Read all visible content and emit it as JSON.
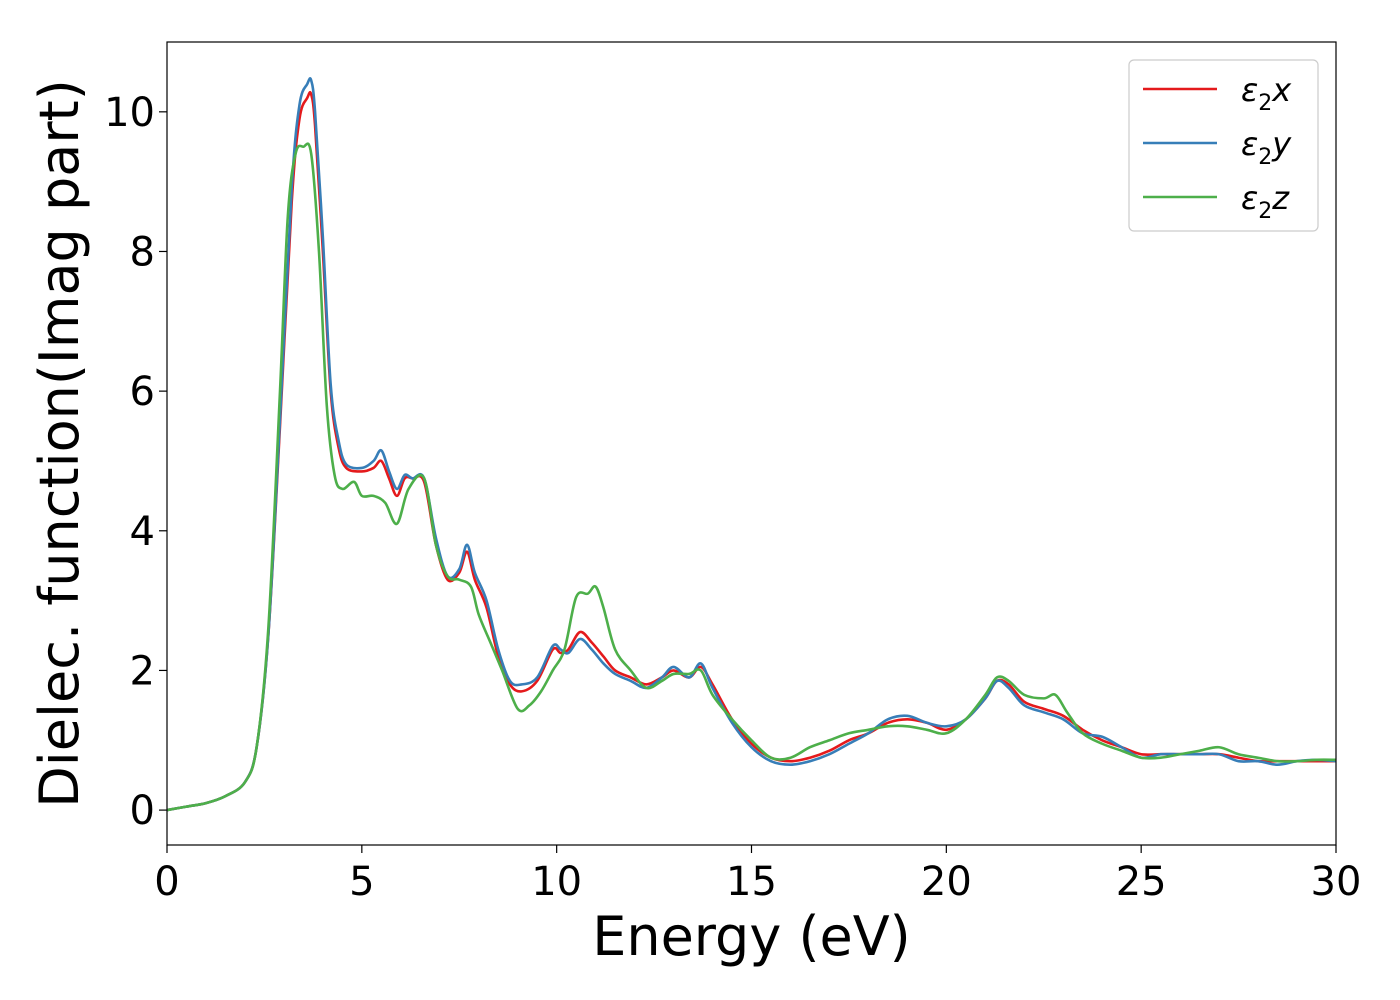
{
  "chart_data": {
    "type": "line",
    "xlabel": "Energy (eV)",
    "ylabel": "Dielec. function(Imag part)",
    "xlim": [
      0,
      30
    ],
    "ylim": [
      -0.5,
      11
    ],
    "xticks": [
      0,
      5,
      10,
      15,
      20,
      25,
      30
    ],
    "yticks": [
      0,
      2,
      4,
      6,
      8,
      10
    ],
    "grid": false,
    "legend_position": "top-right",
    "series": [
      {
        "name": "ε₂x",
        "legend_base": "ε",
        "legend_sub": "2",
        "legend_var": "x",
        "color": "#e41a1c",
        "x": [
          0,
          0.5,
          1.0,
          1.5,
          2.0,
          2.3,
          2.6,
          2.9,
          3.2,
          3.4,
          3.6,
          3.7,
          3.8,
          4.0,
          4.2,
          4.4,
          4.6,
          5.0,
          5.3,
          5.5,
          5.7,
          5.9,
          6.1,
          6.3,
          6.6,
          6.9,
          7.2,
          7.5,
          7.7,
          7.9,
          8.2,
          8.5,
          8.8,
          9.1,
          9.5,
          9.9,
          10.1,
          10.3,
          10.6,
          10.9,
          11.2,
          11.5,
          11.9,
          12.3,
          12.7,
          13.0,
          13.4,
          13.7,
          14.0,
          14.5,
          15.0,
          15.5,
          16.0,
          16.5,
          17.0,
          17.5,
          18.0,
          18.5,
          19.0,
          19.5,
          20.0,
          20.5,
          21.0,
          21.3,
          21.6,
          22.0,
          22.5,
          23.0,
          23.5,
          24.0,
          24.5,
          25.0,
          25.5,
          26.0,
          26.5,
          27.0,
          27.5,
          28.0,
          28.5,
          29.0,
          29.5,
          30.0
        ],
        "y": [
          0,
          0.05,
          0.1,
          0.2,
          0.4,
          0.9,
          2.5,
          5.5,
          8.7,
          9.9,
          10.2,
          10.25,
          9.8,
          8.0,
          6.0,
          5.2,
          4.9,
          4.85,
          4.9,
          5.0,
          4.75,
          4.5,
          4.75,
          4.75,
          4.7,
          3.8,
          3.3,
          3.4,
          3.7,
          3.3,
          2.9,
          2.2,
          1.8,
          1.7,
          1.85,
          2.3,
          2.25,
          2.3,
          2.55,
          2.4,
          2.2,
          2.0,
          1.9,
          1.8,
          1.9,
          2.0,
          1.9,
          2.05,
          1.8,
          1.3,
          0.95,
          0.75,
          0.7,
          0.75,
          0.85,
          1.0,
          1.1,
          1.25,
          1.3,
          1.25,
          1.15,
          1.3,
          1.6,
          1.85,
          1.8,
          1.55,
          1.45,
          1.35,
          1.15,
          1.0,
          0.9,
          0.8,
          0.8,
          0.8,
          0.8,
          0.8,
          0.75,
          0.7,
          0.7,
          0.7,
          0.7,
          0.7
        ]
      },
      {
        "name": "ε₂y",
        "legend_base": "ε",
        "legend_sub": "2",
        "legend_var": "y",
        "color": "#377eb8",
        "x": [
          0,
          0.5,
          1.0,
          1.5,
          2.0,
          2.3,
          2.6,
          2.9,
          3.2,
          3.4,
          3.6,
          3.7,
          3.8,
          4.0,
          4.2,
          4.4,
          4.6,
          5.0,
          5.3,
          5.5,
          5.7,
          5.9,
          6.1,
          6.3,
          6.6,
          6.9,
          7.2,
          7.5,
          7.7,
          7.9,
          8.2,
          8.5,
          8.8,
          9.1,
          9.5,
          9.9,
          10.1,
          10.3,
          10.6,
          10.9,
          11.2,
          11.5,
          11.9,
          12.3,
          12.7,
          13.0,
          13.4,
          13.7,
          14.0,
          14.5,
          15.0,
          15.5,
          16.0,
          16.5,
          17.0,
          17.5,
          18.0,
          18.5,
          19.0,
          19.5,
          20.0,
          20.5,
          21.0,
          21.3,
          21.6,
          22.0,
          22.5,
          23.0,
          23.5,
          24.0,
          24.5,
          25.0,
          25.5,
          26.0,
          26.5,
          27.0,
          27.5,
          28.0,
          28.5,
          29.0,
          29.5,
          30.0
        ],
        "y": [
          0,
          0.05,
          0.1,
          0.2,
          0.4,
          0.9,
          2.5,
          5.6,
          8.9,
          10.1,
          10.4,
          10.45,
          10.0,
          8.2,
          6.1,
          5.3,
          4.95,
          4.9,
          5.0,
          5.15,
          4.85,
          4.6,
          4.8,
          4.75,
          4.75,
          3.9,
          3.35,
          3.45,
          3.8,
          3.4,
          3.0,
          2.3,
          1.85,
          1.8,
          1.9,
          2.35,
          2.3,
          2.25,
          2.45,
          2.3,
          2.1,
          1.95,
          1.85,
          1.75,
          1.9,
          2.05,
          1.9,
          2.1,
          1.75,
          1.25,
          0.9,
          0.7,
          0.65,
          0.7,
          0.8,
          0.95,
          1.1,
          1.3,
          1.35,
          1.25,
          1.2,
          1.3,
          1.6,
          1.85,
          1.75,
          1.5,
          1.4,
          1.3,
          1.1,
          1.05,
          0.9,
          0.75,
          0.8,
          0.8,
          0.8,
          0.8,
          0.7,
          0.7,
          0.65,
          0.7,
          0.72,
          0.7
        ]
      },
      {
        "name": "ε₂z",
        "legend_base": "ε",
        "legend_sub": "2",
        "legend_var": "z",
        "color": "#4daf4a",
        "x": [
          0,
          0.5,
          1.0,
          1.5,
          2.0,
          2.3,
          2.6,
          2.9,
          3.1,
          3.3,
          3.5,
          3.7,
          3.9,
          4.1,
          4.3,
          4.5,
          4.8,
          5.0,
          5.3,
          5.6,
          5.9,
          6.2,
          6.6,
          6.9,
          7.2,
          7.5,
          7.8,
          8.0,
          8.3,
          8.6,
          9.0,
          9.3,
          9.6,
          9.9,
          10.2,
          10.5,
          10.8,
          11.0,
          11.2,
          11.5,
          11.9,
          12.3,
          12.7,
          13.0,
          13.4,
          13.7,
          14.0,
          14.5,
          15.0,
          15.5,
          16.0,
          16.5,
          17.0,
          17.5,
          18.0,
          18.5,
          19.0,
          19.5,
          20.0,
          20.5,
          21.0,
          21.3,
          21.6,
          22.0,
          22.5,
          22.8,
          23.1,
          23.5,
          24.0,
          24.5,
          25.0,
          25.5,
          26.0,
          26.5,
          27.0,
          27.5,
          28.0,
          28.5,
          29.0,
          29.5,
          30.0
        ],
        "y": [
          0,
          0.05,
          0.1,
          0.2,
          0.4,
          0.9,
          2.6,
          6.0,
          8.5,
          9.4,
          9.5,
          9.4,
          8.0,
          5.8,
          4.8,
          4.6,
          4.7,
          4.5,
          4.5,
          4.4,
          4.1,
          4.6,
          4.75,
          3.8,
          3.35,
          3.3,
          3.2,
          2.8,
          2.4,
          2.0,
          1.45,
          1.5,
          1.7,
          2.0,
          2.3,
          3.05,
          3.1,
          3.2,
          2.9,
          2.3,
          2.0,
          1.75,
          1.85,
          1.95,
          1.95,
          2.0,
          1.65,
          1.3,
          1.0,
          0.75,
          0.75,
          0.9,
          1.0,
          1.1,
          1.15,
          1.2,
          1.2,
          1.15,
          1.1,
          1.3,
          1.65,
          1.9,
          1.85,
          1.65,
          1.6,
          1.65,
          1.4,
          1.1,
          0.95,
          0.85,
          0.75,
          0.75,
          0.8,
          0.85,
          0.9,
          0.8,
          0.75,
          0.7,
          0.7,
          0.72,
          0.72
        ]
      }
    ]
  }
}
